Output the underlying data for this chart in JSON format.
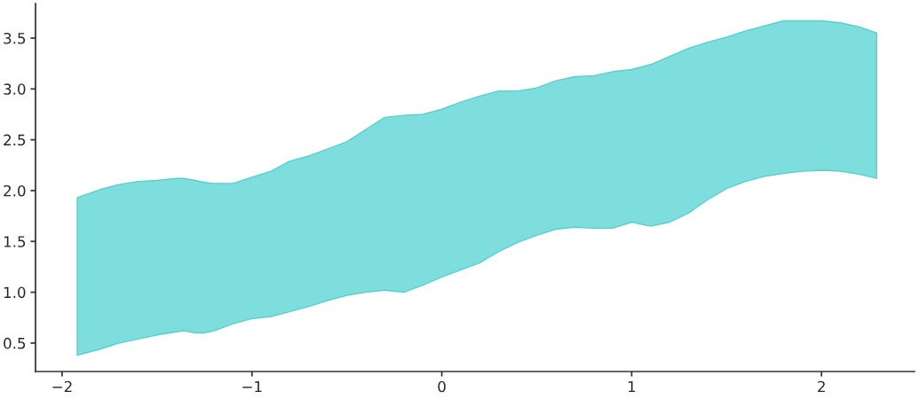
{
  "chart_data": {
    "type": "line",
    "x": [
      -1.92,
      -1.8,
      -1.7,
      -1.6,
      -1.5,
      -1.4,
      -1.36,
      -1.3,
      -1.25,
      -1.2,
      -1.1,
      -1.0,
      -0.9,
      -0.8,
      -0.7,
      -0.6,
      -0.5,
      -0.4,
      -0.3,
      -0.2,
      -0.1,
      0.0,
      0.1,
      0.2,
      0.3,
      0.4,
      0.5,
      0.6,
      0.7,
      0.8,
      0.9,
      1.0,
      1.1,
      1.2,
      1.3,
      1.4,
      1.5,
      1.6,
      1.7,
      1.8,
      1.9,
      2.0,
      2.1,
      2.2,
      2.29
    ],
    "series": [
      {
        "color": "#7ddedd",
        "values": [
          null,
          null,
          null,
          null,
          null,
          null,
          null,
          null,
          null,
          null,
          null,
          null,
          null,
          null,
          null,
          null,
          null,
          null,
          null,
          null,
          null,
          null,
          null,
          null,
          null,
          null,
          null,
          null,
          null,
          null,
          null,
          null,
          null,
          null,
          null,
          null,
          null,
          null,
          null,
          null,
          null,
          null,
          null,
          null,
          null
        ],
        "upper": [
          1.93,
          2.01,
          2.06,
          2.09,
          2.1,
          2.12,
          2.12,
          2.1,
          2.08,
          2.07,
          2.07,
          2.13,
          2.19,
          2.29,
          2.34,
          2.41,
          2.48,
          2.6,
          2.72,
          2.74,
          2.75,
          2.8,
          2.87,
          2.93,
          2.98,
          2.98,
          3.01,
          3.08,
          3.12,
          3.13,
          3.17,
          3.19,
          3.24,
          3.32,
          3.4,
          3.46,
          3.51,
          3.57,
          3.62,
          3.67,
          3.67,
          3.67,
          3.65,
          3.61,
          3.55
        ],
        "lower": [
          0.38,
          0.44,
          0.5,
          0.54,
          0.58,
          0.61,
          0.62,
          0.6,
          0.6,
          0.62,
          0.69,
          0.74,
          0.76,
          0.81,
          0.86,
          0.92,
          0.97,
          1.0,
          1.02,
          1.0,
          1.07,
          1.15,
          1.22,
          1.29,
          1.4,
          1.49,
          1.56,
          1.62,
          1.64,
          1.63,
          1.63,
          1.69,
          1.65,
          1.69,
          1.78,
          1.91,
          2.02,
          2.09,
          2.14,
          2.17,
          2.19,
          2.2,
          2.19,
          2.16,
          2.12
        ]
      }
    ],
    "xlim": [
      -2.14,
      2.49
    ],
    "ylim": [
      0.22,
      3.84
    ],
    "xticks": [
      {
        "value": -2,
        "label": "−2"
      },
      {
        "value": -1,
        "label": "−1"
      },
      0,
      1,
      2
    ],
    "yticks": [
      0.5,
      {
        "value": 1,
        "label": "1.0"
      },
      1.5,
      {
        "value": 2,
        "label": "2.0"
      },
      2.5,
      {
        "value": 3,
        "label": "3.0"
      },
      3.5
    ]
  }
}
